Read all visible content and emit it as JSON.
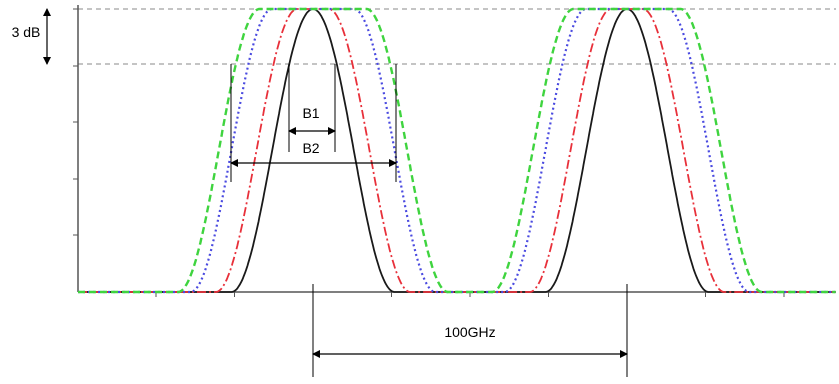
{
  "labels": {
    "three_db": "3 dB",
    "b1": "B1",
    "b2": "B2",
    "spacing": "100GHz"
  },
  "colors": {
    "axis": "#555555",
    "black": "#1a1a1a",
    "red": "#e8303a",
    "blue": "#4a4ae0",
    "green": "#3fd43f",
    "guide": "#888888",
    "annotation": "#000000"
  },
  "chart_data": {
    "type": "line",
    "x_unit": "GHz",
    "channel_centers": [
      0,
      100
    ],
    "series": [
      {
        "color": "black",
        "style": "solid",
        "flat_top_half_width": 0,
        "edge_half_width": 26
      },
      {
        "color": "red",
        "style": "dash-dot",
        "flat_top_half_width": 5,
        "edge_half_width": 26
      },
      {
        "color": "blue",
        "style": "dotted",
        "flat_top_half_width": 13,
        "edge_half_width": 26
      },
      {
        "color": "green",
        "style": "dashed",
        "flat_top_half_width": 17,
        "edge_half_width": 26
      }
    ]
  }
}
